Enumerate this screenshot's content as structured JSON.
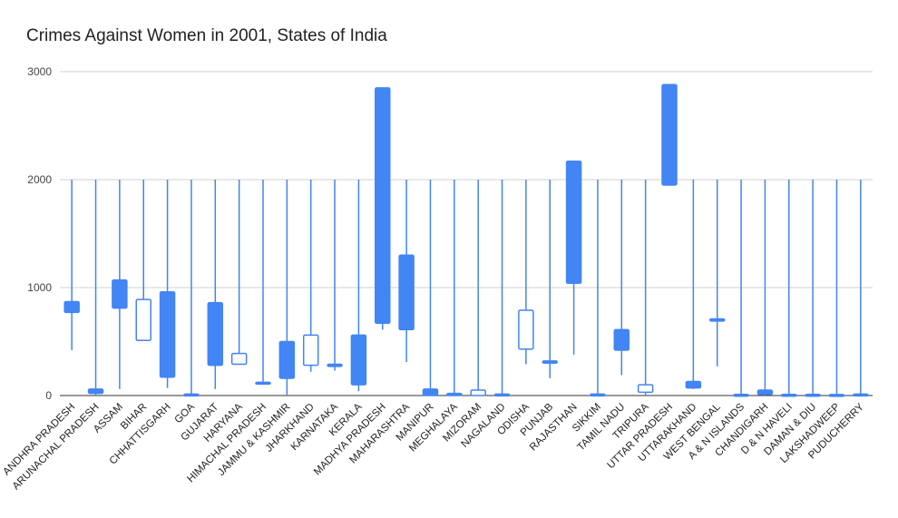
{
  "chart_data": {
    "type": "candlestick",
    "title": "Crimes Against Women in 2001, States of India",
    "xlabel": "",
    "ylabel": "",
    "ylim": [
      0,
      3000
    ],
    "yticks": [
      0,
      1000,
      2000,
      3000
    ],
    "grid": true,
    "legend": "none",
    "series": [
      {
        "points": [
          {
            "category": "ANDHRA PRADESH",
            "low": 420,
            "open": 770,
            "close": 870,
            "high": 2000
          },
          {
            "category": "ARUNACHAL PRADESH",
            "low": 0,
            "open": 20,
            "close": 60,
            "high": 2000
          },
          {
            "category": "ASSAM",
            "low": 60,
            "open": 810,
            "close": 1070,
            "high": 2000
          },
          {
            "category": "BIHAR",
            "low": 510,
            "open": 890,
            "close": 510,
            "high": 2000
          },
          {
            "category": "CHHATTISGARH",
            "low": 70,
            "open": 170,
            "close": 960,
            "high": 2000
          },
          {
            "category": "GOA",
            "low": 0,
            "open": 0,
            "close": 10,
            "high": 2000
          },
          {
            "category": "GUJARAT",
            "low": 60,
            "open": 280,
            "close": 860,
            "high": 2000
          },
          {
            "category": "HARYANA",
            "low": 290,
            "open": 390,
            "close": 290,
            "high": 2000
          },
          {
            "category": "HIMACHAL PRADESH",
            "low": 100,
            "open": 110,
            "close": 120,
            "high": 2000
          },
          {
            "category": "JAMMU & KASHMIR",
            "low": 0,
            "open": 160,
            "close": 500,
            "high": 2000
          },
          {
            "category": "JHARKHAND",
            "low": 220,
            "open": 560,
            "close": 280,
            "high": 2000
          },
          {
            "category": "KARNATAKA",
            "low": 230,
            "open": 270,
            "close": 290,
            "high": 2000
          },
          {
            "category": "KERALA",
            "low": 40,
            "open": 100,
            "close": 560,
            "high": 2000
          },
          {
            "category": "MADHYA PRADESH",
            "low": 610,
            "open": 670,
            "close": 2850,
            "high": 2850
          },
          {
            "category": "MAHARASHTRA",
            "low": 310,
            "open": 610,
            "close": 1300,
            "high": 2000
          },
          {
            "category": "MANIPUR",
            "low": 0,
            "open": 0,
            "close": 60,
            "high": 2000
          },
          {
            "category": "MEGHALAYA",
            "low": 0,
            "open": 0,
            "close": 20,
            "high": 2000
          },
          {
            "category": "MIZORAM",
            "low": 0,
            "open": 50,
            "close": 0,
            "high": 2000
          },
          {
            "category": "NAGALAND",
            "low": 0,
            "open": 0,
            "close": 10,
            "high": 2000
          },
          {
            "category": "ODISHA",
            "low": 290,
            "open": 790,
            "close": 430,
            "high": 2000
          },
          {
            "category": "PUNJAB",
            "low": 160,
            "open": 300,
            "close": 320,
            "high": 2000
          },
          {
            "category": "RAJASTHAN",
            "low": 380,
            "open": 1040,
            "close": 2170,
            "high": 2170
          },
          {
            "category": "SIKKIM",
            "low": 0,
            "open": 0,
            "close": 10,
            "high": 2000
          },
          {
            "category": "TAMIL NADU",
            "low": 190,
            "open": 420,
            "close": 610,
            "high": 2000
          },
          {
            "category": "TRIPURA",
            "low": 0,
            "open": 100,
            "close": 30,
            "high": 2000
          },
          {
            "category": "UTTAR PRADESH",
            "low": 1950,
            "open": 1950,
            "close": 2880,
            "high": 2880
          },
          {
            "category": "UTTARAKHAND",
            "low": 60,
            "open": 70,
            "close": 130,
            "high": 2000
          },
          {
            "category": "WEST BENGAL",
            "low": 270,
            "open": 690,
            "close": 710,
            "high": 2000
          },
          {
            "category": "A & N ISLANDS",
            "low": 0,
            "open": 0,
            "close": 5,
            "high": 2000
          },
          {
            "category": "CHANDIGARH",
            "low": 0,
            "open": 10,
            "close": 50,
            "high": 2000
          },
          {
            "category": "D & N HAVELI",
            "low": 0,
            "open": 0,
            "close": 5,
            "high": 2000
          },
          {
            "category": "DAMAN & DIU",
            "low": 0,
            "open": 0,
            "close": 5,
            "high": 2000
          },
          {
            "category": "LAKSHADWEEP",
            "low": 0,
            "open": 0,
            "close": 2,
            "high": 2000
          },
          {
            "category": "PUDUCHERRY",
            "low": 0,
            "open": 0,
            "close": 10,
            "high": 2000
          }
        ]
      }
    ],
    "colors": {
      "rising_fill": "#4285f4",
      "falling_fill": "#ffffff",
      "stroke": "#4285f4",
      "grid": "#d0d0d0",
      "baseline": "#333333"
    }
  }
}
